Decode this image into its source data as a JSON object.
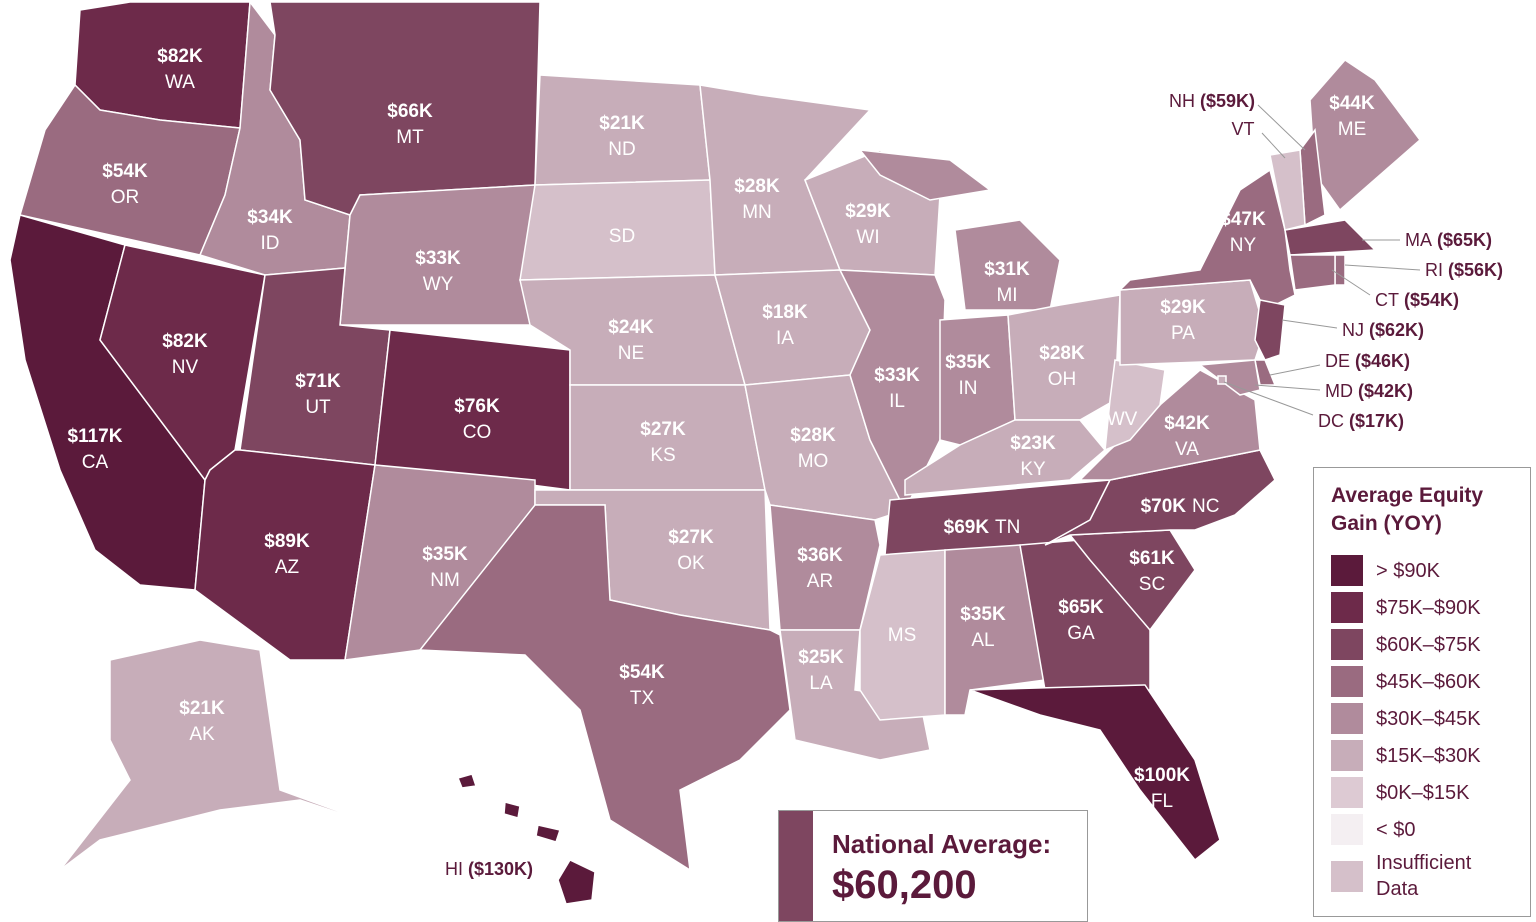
{
  "chart_data": {
    "type": "choropleth",
    "categories": [
      "WA",
      "OR",
      "CA",
      "NV",
      "ID",
      "MT",
      "WY",
      "UT",
      "CO",
      "AZ",
      "NM",
      "ND",
      "SD",
      "NE",
      "KS",
      "OK",
      "TX",
      "MN",
      "IA",
      "MO",
      "AR",
      "LA",
      "WI",
      "IL",
      "MI",
      "IN",
      "OH",
      "KY",
      "TN",
      "MS",
      "AL",
      "GA",
      "FL",
      "SC",
      "NC",
      "VA",
      "WV",
      "PA",
      "NY",
      "ME",
      "NH",
      "VT",
      "MA",
      "RI",
      "CT",
      "NJ",
      "DE",
      "MD",
      "DC",
      "AK",
      "HI"
    ],
    "values": [
      82,
      54,
      117,
      82,
      34,
      66,
      33,
      71,
      76,
      89,
      35,
      21,
      null,
      24,
      27,
      27,
      54,
      28,
      18,
      28,
      36,
      25,
      29,
      33,
      31,
      35,
      28,
      23,
      69,
      null,
      35,
      65,
      100,
      61,
      70,
      42,
      null,
      29,
      47,
      44,
      59,
      null,
      65,
      56,
      54,
      62,
      46,
      42,
      17,
      21,
      130
    ],
    "value_labels": [
      "$82K",
      "$54K",
      "$117K",
      "$82K",
      "$34K",
      "$66K",
      "$33K",
      "$71K",
      "$76K",
      "$89K",
      "$35K",
      "$21K",
      null,
      "$24K",
      "$27K",
      "$27K",
      "$54K",
      "$28K",
      "$18K",
      "$28K",
      "$36K",
      "$25K",
      "$29K",
      "$33K",
      "$31K",
      "$35K",
      "$28K",
      "$23K",
      "$69K",
      null,
      "$35K",
      "$65K",
      "$100K",
      "$61K",
      "$70K",
      "$42K",
      null,
      "$29K",
      "$47K",
      "$44K",
      "($59K)",
      null,
      "($65K)",
      "($56K)",
      "($54K)",
      "($62K)",
      "($46K)",
      "($42K)",
      "($17K)",
      "$21K",
      "($130K)"
    ],
    "legend": {
      "title": "Average Equity Gain (YOY)",
      "breaks": [
        90,
        75,
        60,
        45,
        30,
        15,
        0
      ],
      "items": [
        {
          "label": "> $90K",
          "color": "#5b1a3b"
        },
        {
          "label": "$75K–$90K",
          "color": "#6d2a4a"
        },
        {
          "label": "$60K–$75K",
          "color": "#7e4660"
        },
        {
          "label": "$45K–$60K",
          "color": "#9a6b80"
        },
        {
          "label": "$30K–$45K",
          "color": "#b08b9c"
        },
        {
          "label": "$15K–$30K",
          "color": "#c7adb9"
        },
        {
          "label": "$0K–$15K",
          "color": "#ddcad3"
        },
        {
          "label": "< $0",
          "color": "#f4eff2"
        },
        {
          "label": "Insufficient Data",
          "color": "#d5c0ca"
        }
      ]
    },
    "national_average_title": "National Average:",
    "national_average": "$60,200"
  }
}
